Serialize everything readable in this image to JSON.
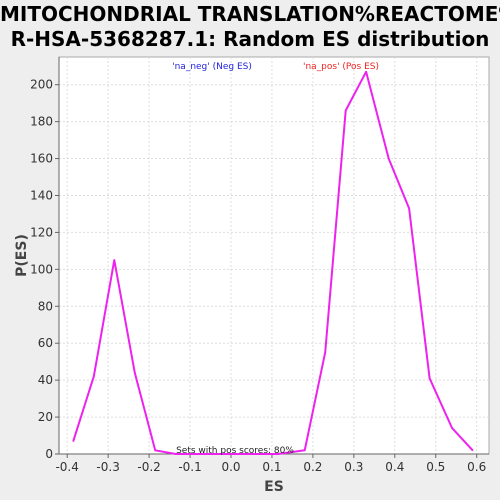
{
  "chart_data": {
    "type": "line",
    "title": [
      "MITOCHONDRIAL TRANSLATION%REACTOME%",
      "R-HSA-5368287.1: Random ES distribution"
    ],
    "xlabel": "ES",
    "ylabel": "P(ES)",
    "xlim": [
      -0.42,
      0.63
    ],
    "ylim": [
      0,
      215
    ],
    "xticks": [
      -0.4,
      -0.3,
      -0.2,
      -0.1,
      0.0,
      0.1,
      0.2,
      0.3,
      0.4,
      0.5,
      0.6
    ],
    "xtick_labels": [
      "-0.4",
      "-0.3",
      "-0.2",
      "-0.1",
      "0.0",
      "0.1",
      "0.2",
      "0.3",
      "0.4",
      "0.5",
      "0.6"
    ],
    "yticks": [
      0,
      20,
      40,
      60,
      80,
      100,
      120,
      140,
      160,
      180,
      200
    ],
    "ytick_labels": [
      "0",
      "20",
      "40",
      "60",
      "80",
      "100",
      "120",
      "140",
      "160",
      "180",
      "200"
    ],
    "grid": true,
    "legend": [
      {
        "label": "'na_neg' (Neg ES)",
        "color": "#2222dd"
      },
      {
        "label": "'na_pos' (Pos ES)",
        "color": "#ee2222"
      }
    ],
    "annotation": "Sets with pos scores: 80%",
    "series": [
      {
        "color": "#ee22ee",
        "x": [
          -0.385,
          -0.335,
          -0.285,
          -0.235,
          -0.185,
          -0.135,
          -0.085,
          -0.035,
          0.015,
          0.065,
          0.115,
          0.18,
          0.23,
          0.28,
          0.33,
          0.385,
          0.435,
          0.485,
          0.54,
          0.59
        ],
        "y": [
          7,
          42,
          105,
          44,
          2,
          0,
          0,
          0,
          0,
          0,
          0,
          2,
          55,
          186,
          207,
          160,
          133,
          41,
          14,
          2
        ]
      }
    ]
  }
}
